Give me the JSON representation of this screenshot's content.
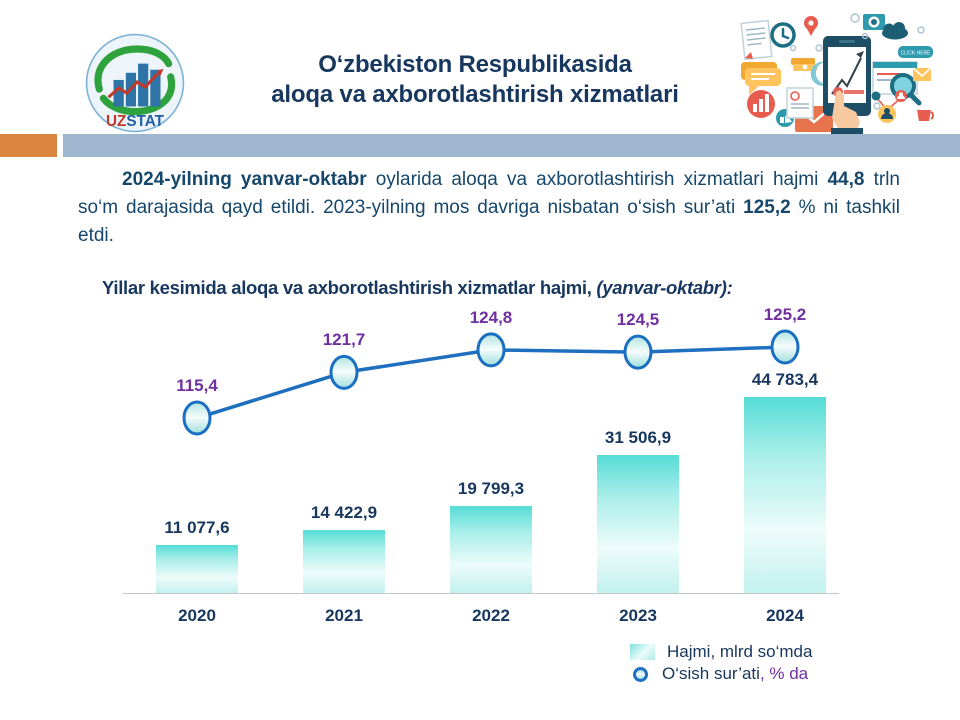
{
  "header": {
    "title_line1": "O‘zbekiston Respublikasida",
    "title_line2": "aloqa va axborotlashtirish xizmatlari",
    "logo_uz": "UZ",
    "logo_stat": "STAT"
  },
  "intro": {
    "bold1": "2024-yilning yanvar-oktabr",
    "seg1": " oylarida aloqa va axborotlashtirish xizmatlari hajmi ",
    "bold2": "44,8",
    "seg2": " trln so‘m darajasida qayd etildi. 2023-yilning mos davriga nisbatan o‘sish sur’ati ",
    "bold3": "125,2",
    "seg3": " % ni tashkil etdi."
  },
  "chart_heading": {
    "title": "Yillar  kesimida aloqa va axborotlashtirish  xizmatlar  hajmi,",
    "note": " (yanvar-oktabr):"
  },
  "chart_data": {
    "type": "bar",
    "subtype": "combo bar + line (secondary axis)",
    "title": "Yillar kesimida aloqa va axborotlashtirish xizmatlar hajmi, (yanvar-oktabr):",
    "categories": [
      "2020",
      "2021",
      "2022",
      "2023",
      "2024"
    ],
    "series": [
      {
        "name": "Hajmi, mlrd so‘mda",
        "type": "bar",
        "values": [
          11077.6,
          14422.9,
          19799.3,
          31506.9,
          44783.4
        ],
        "labels": [
          "11 077,6",
          "14 422,9",
          "19 799,3",
          "31 506,9",
          "44 783,4"
        ]
      },
      {
        "name": "O‘sish sur’ati, % da",
        "type": "line",
        "values": [
          115.4,
          121.7,
          124.8,
          124.5,
          125.2
        ],
        "labels": [
          "115,4",
          "121,7",
          "124,8",
          "124,5",
          "125,2"
        ]
      }
    ],
    "legend_position": "bottom-right",
    "grid": false,
    "colors": {
      "bar": "#56DCD6",
      "line": "#1F6FBF",
      "bar_label": "#17375E",
      "line_label": "#7030A0"
    }
  },
  "legend": {
    "bar_label": "Hajmi, mlrd so‘mda",
    "line_label": "O‘sish sur’ati",
    "line_suffix": ", % da"
  },
  "illustration": {
    "click_here": "CLICK HERE",
    "icons": [
      "tablet",
      "pointing-hand",
      "growth-chart",
      "clock",
      "document",
      "speech-bubble",
      "pie-chart",
      "envelope",
      "magnifier",
      "camera",
      "cloud",
      "click-here-button",
      "location-pin",
      "user-network",
      "coffee-cup",
      "thumbs-up"
    ]
  },
  "colors": {
    "navy": "#17375E",
    "body_text": "#16476B",
    "purple": "#7030A0",
    "stripe_orange": "#D9853F",
    "stripe_blue": "#9FB6CF"
  }
}
